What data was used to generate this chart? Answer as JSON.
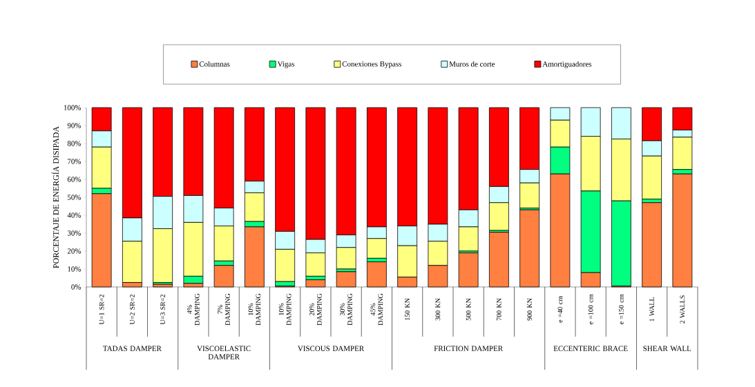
{
  "chart_data": {
    "type": "bar",
    "stacked": true,
    "ylabel": "PORCENTAJE DE ENERGÍA DISIPADA",
    "categories": [
      "U=1 SR=2",
      "U=2 SR=2",
      "U=3 SR=2",
      "4% DAMPING",
      "7% DAMPING",
      "10% DAMPING",
      "10% DAMPING",
      "20% DAMPING",
      "30% DAMPING",
      "45% DAMPING",
      "150 KN",
      "300 KN",
      "500 KN",
      "700 KN",
      "900 KN",
      "e =40 cm",
      "e =100 cm",
      "e =150 cm",
      "1 WALL",
      "2 WALLS"
    ],
    "series": [
      {
        "name": "Columnas",
        "color": "#ff8040",
        "values": [
          52,
          2.5,
          1.5,
          2,
          12,
          33.5,
          0.5,
          4,
          8.5,
          14,
          5.5,
          12,
          19,
          30.5,
          43,
          63,
          8,
          0.5,
          47,
          63
        ]
      },
      {
        "name": "Vigas",
        "color": "#00ff80",
        "values": [
          3,
          null,
          1,
          4,
          2.5,
          3,
          2.5,
          2,
          1.5,
          2,
          null,
          null,
          1,
          1,
          1,
          15,
          45.5,
          47.5,
          2,
          2.5
        ]
      },
      {
        "name": "Conexiones Bypass",
        "color": "#ffff80",
        "values": [
          23,
          23,
          30,
          30,
          19.5,
          16,
          18,
          13,
          12,
          11,
          17.5,
          13.5,
          13.5,
          15.5,
          14,
          15,
          30.5,
          34.5,
          24,
          18
        ]
      },
      {
        "name": "Muros de corte",
        "color": "#ccffff",
        "values": [
          9,
          13,
          18,
          15,
          10,
          6.5,
          10,
          7.5,
          7,
          6.5,
          11,
          9.5,
          9.5,
          9,
          7.5,
          7,
          16,
          17.5,
          8.5,
          4
        ]
      },
      {
        "name": "Amortiguadores",
        "color": "#ff0000",
        "values": [
          13,
          61.5,
          49.5,
          49,
          56,
          41,
          69,
          73.5,
          71,
          66.5,
          66,
          65,
          57,
          44,
          34.5,
          0,
          0,
          0,
          18.5,
          12.5
        ]
      }
    ],
    "ylim": [
      0,
      100
    ],
    "yticks": [
      {
        "value": 0,
        "label": "0%"
      },
      {
        "value": 10,
        "label": "10%"
      },
      {
        "value": 20,
        "label": "20%"
      },
      {
        "value": 30,
        "label": "30%"
      },
      {
        "value": 40,
        "label": "40%"
      },
      {
        "value": 50,
        "label": "50%"
      },
      {
        "value": 60,
        "label": "60%"
      },
      {
        "value": 70,
        "label": "70%"
      },
      {
        "value": 80,
        "label": "80%"
      },
      {
        "value": 90,
        "label": "90%"
      },
      {
        "value": 100,
        "label": "100%"
      }
    ],
    "annotations": [
      "TADAS DAMPER",
      "VISCOELASTIC DAMPER",
      "VISCOUS DAMPER",
      "FRICTION DAMPER",
      "ECCENTERIC BRACE",
      "SHEAR WALL"
    ],
    "legend": "top",
    "grid": false
  }
}
